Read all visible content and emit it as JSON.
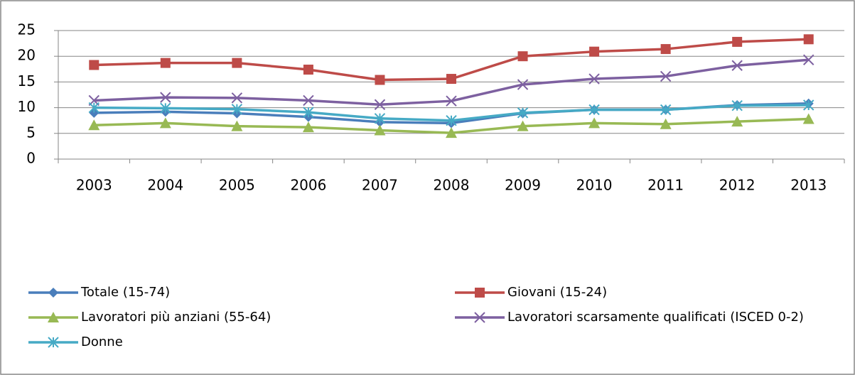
{
  "chart_data": {
    "type": "line",
    "categories": [
      "2003",
      "2004",
      "2005",
      "2006",
      "2007",
      "2008",
      "2009",
      "2010",
      "2011",
      "2012",
      "2013"
    ],
    "series": [
      {
        "name": "Totale (15-74)",
        "color": "#4a7ebb",
        "marker": "diamond",
        "values": [
          9.0,
          9.2,
          8.9,
          8.2,
          7.2,
          7.0,
          8.9,
          9.6,
          9.6,
          10.5,
          10.8
        ]
      },
      {
        "name": "Giovani (15-24)",
        "color": "#be4b48",
        "marker": "square",
        "values": [
          18.3,
          18.7,
          18.7,
          17.4,
          15.4,
          15.6,
          20.0,
          20.9,
          21.4,
          22.8,
          23.3
        ]
      },
      {
        "name": "Lavoratori più anziani (55-64)",
        "color": "#98b954",
        "marker": "triangle",
        "values": [
          6.6,
          7.0,
          6.4,
          6.2,
          5.6,
          5.1,
          6.4,
          7.0,
          6.8,
          7.3,
          7.8
        ]
      },
      {
        "name": "Lavoratori scarsamente qualificati (ISCED 0-2)",
        "color": "#7d60a0",
        "marker": "x",
        "values": [
          11.4,
          12.0,
          11.9,
          11.4,
          10.6,
          11.3,
          14.5,
          15.6,
          16.1,
          18.2,
          19.3
        ]
      },
      {
        "name": "Donne",
        "color": "#46aac5",
        "marker": "star",
        "values": [
          10.0,
          9.9,
          9.7,
          9.1,
          7.9,
          7.5,
          9.0,
          9.6,
          9.6,
          10.4,
          10.5
        ]
      }
    ],
    "ylim": [
      0,
      25
    ],
    "yticks": [
      0,
      5,
      10,
      15,
      20,
      25
    ],
    "grid": true,
    "legend": "bottom"
  }
}
